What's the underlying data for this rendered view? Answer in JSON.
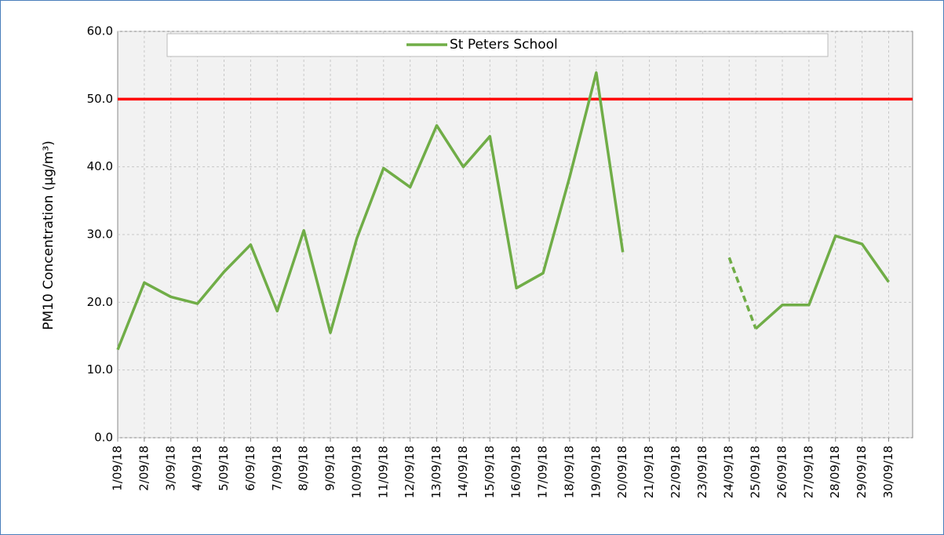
{
  "chart_data": {
    "type": "line",
    "y_label": "PM10 Concentration (µg/m³)",
    "categories": [
      "1/09/18",
      "2/09/18",
      "3/09/18",
      "4/09/18",
      "5/09/18",
      "6/09/18",
      "7/09/18",
      "8/09/18",
      "9/09/18",
      "10/09/18",
      "11/09/18",
      "12/09/18",
      "13/09/18",
      "14/09/18",
      "15/09/18",
      "16/09/18",
      "17/09/18",
      "18/09/18",
      "19/09/18",
      "20/09/18",
      "21/09/18",
      "22/09/18",
      "23/09/18",
      "24/09/18",
      "25/09/18",
      "26/09/18",
      "27/09/18",
      "28/09/18",
      "29/09/18",
      "30/09/18"
    ],
    "series": [
      {
        "name": "St Peters School",
        "color": "#70ad47",
        "values": [
          13.0,
          22.9,
          20.8,
          19.8,
          24.5,
          28.5,
          18.7,
          30.6,
          15.5,
          29.5,
          39.8,
          37.0,
          46.1,
          40.0,
          44.5,
          22.1,
          24.3,
          38.5,
          53.9,
          27.4,
          null,
          null,
          null,
          26.6,
          16.1,
          19.6,
          19.6,
          29.8,
          28.6,
          23.0
        ]
      }
    ],
    "reference_line": {
      "value": 50,
      "color": "#ff0000"
    },
    "ylim": [
      0,
      60
    ],
    "yticks": [
      {
        "value": 0,
        "label": "0.0"
      },
      {
        "value": 10,
        "label": "10.0"
      },
      {
        "value": 20,
        "label": "20.0"
      },
      {
        "value": 30,
        "label": "30.0"
      },
      {
        "value": 40,
        "label": "40.0"
      },
      {
        "value": 50,
        "label": "50.0"
      },
      {
        "value": 60,
        "label": "60.0"
      }
    ],
    "grid": true,
    "legend": "top"
  }
}
